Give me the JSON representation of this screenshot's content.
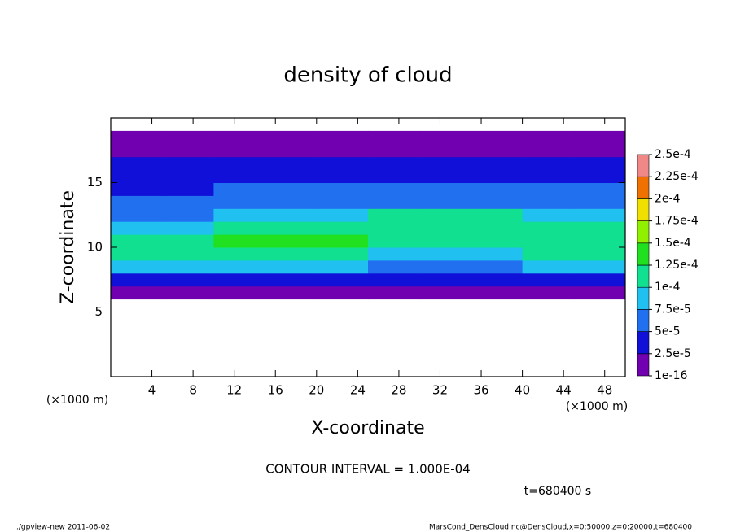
{
  "chart_data": {
    "type": "shade",
    "title": "density of cloud",
    "xlabel": "X-coordinate",
    "ylabel": "Z-coordinate",
    "x_unit": "(×1000 m)",
    "y_unit": "(×1000 m)",
    "annotations": [
      "CONTOUR INTERVAL = 1.000E-04",
      "t=680400 s"
    ],
    "footer": [
      "./gpview-new  2011-06-02",
      "MarsCond_DensCloud.nc@DensCloud,x=0:50000,z=0:20000,t=680400"
    ],
    "xlim": [
      0,
      50
    ],
    "ylim": [
      0,
      20
    ],
    "xticks": [
      4,
      8,
      12,
      16,
      20,
      24,
      28,
      32,
      36,
      40,
      44,
      48
    ],
    "yticks": [
      5,
      10,
      15
    ],
    "x_bins": [
      0,
      5,
      10,
      15,
      20,
      25,
      30,
      35,
      40,
      45,
      50
    ],
    "z_bins": [
      6,
      7,
      8,
      9,
      10,
      11,
      12,
      13,
      14,
      15,
      16,
      17,
      18,
      19
    ],
    "values": [
      [
        1.5e-05,
        1.5e-05,
        1.5e-05,
        1.5e-05,
        1.5e-05,
        1e-05,
        1e-05,
        1e-05,
        1.5e-05,
        1.5e-05
      ],
      [
        4.5e-05,
        4.5e-05,
        4e-05,
        4e-05,
        4e-05,
        3e-05,
        3e-05,
        3e-05,
        4e-05,
        4e-05
      ],
      [
        9.5e-05,
        9.5e-05,
        9e-05,
        9e-05,
        9e-05,
        6e-05,
        6e-05,
        6e-05,
        8.5e-05,
        8.5e-05
      ],
      [
        0.00012,
        0.00012,
        0.00012,
        0.00012,
        0.00012,
        9e-05,
        9e-05,
        9e-05,
        0.00011,
        0.00011
      ],
      [
        0.00011,
        0.00011,
        0.000125,
        0.000125,
        0.000125,
        0.00011,
        0.00011,
        0.00011,
        0.00012,
        0.00012
      ],
      [
        8e-05,
        8e-05,
        0.0001,
        0.0001,
        0.0001,
        0.00012,
        0.00012,
        0.00012,
        0.0001,
        0.0001
      ],
      [
        6.5e-05,
        6.5e-05,
        7.5e-05,
        7.5e-05,
        7.5e-05,
        0.00011,
        0.00011,
        0.00011,
        7.5e-05,
        7.5e-05
      ],
      [
        5.5e-05,
        5.5e-05,
        6e-05,
        6e-05,
        6e-05,
        7e-05,
        7e-05,
        7e-05,
        6e-05,
        6e-05
      ],
      [
        4.5e-05,
        4.5e-05,
        5e-05,
        5e-05,
        5e-05,
        5.5e-05,
        5.5e-05,
        5.5e-05,
        5e-05,
        5e-05
      ],
      [
        4e-05,
        4e-05,
        4e-05,
        4e-05,
        4e-05,
        4.5e-05,
        4.5e-05,
        4.5e-05,
        4e-05,
        4e-05
      ],
      [
        3e-05,
        3e-05,
        3e-05,
        3e-05,
        3e-05,
        3e-05,
        3e-05,
        3e-05,
        3e-05,
        3e-05
      ],
      [
        2e-05,
        2e-05,
        2e-05,
        2e-05,
        2e-05,
        2e-05,
        2e-05,
        2e-05,
        2e-05,
        2e-05
      ],
      [
        5e-06,
        5e-06,
        5e-06,
        5e-06,
        5e-06,
        5e-06,
        5e-06,
        5e-06,
        5e-06,
        5e-06
      ]
    ],
    "levels": [
      {
        "value": 1e-16,
        "label": "1e-16"
      },
      {
        "value": 2.5e-05,
        "label": "2.5e-5"
      },
      {
        "value": 5e-05,
        "label": "5e-5"
      },
      {
        "value": 7.5e-05,
        "label": "7.5e-5"
      },
      {
        "value": 0.0001,
        "label": "1e-4"
      },
      {
        "value": 0.000125,
        "label": "1.25e-4"
      },
      {
        "value": 0.00015,
        "label": "1.5e-4"
      },
      {
        "value": 0.000175,
        "label": "1.75e-4"
      },
      {
        "value": 0.0002,
        "label": "2e-4"
      },
      {
        "value": 0.000225,
        "label": "2.25e-4"
      },
      {
        "value": 0.00025,
        "label": "2.5e-4"
      }
    ],
    "colors": [
      "#7000b0",
      "#1010d8",
      "#2070f0",
      "#20c0f0",
      "#10e090",
      "#20e020",
      "#90f000",
      "#f0e000",
      "#f07000",
      "#f08888"
    ]
  }
}
